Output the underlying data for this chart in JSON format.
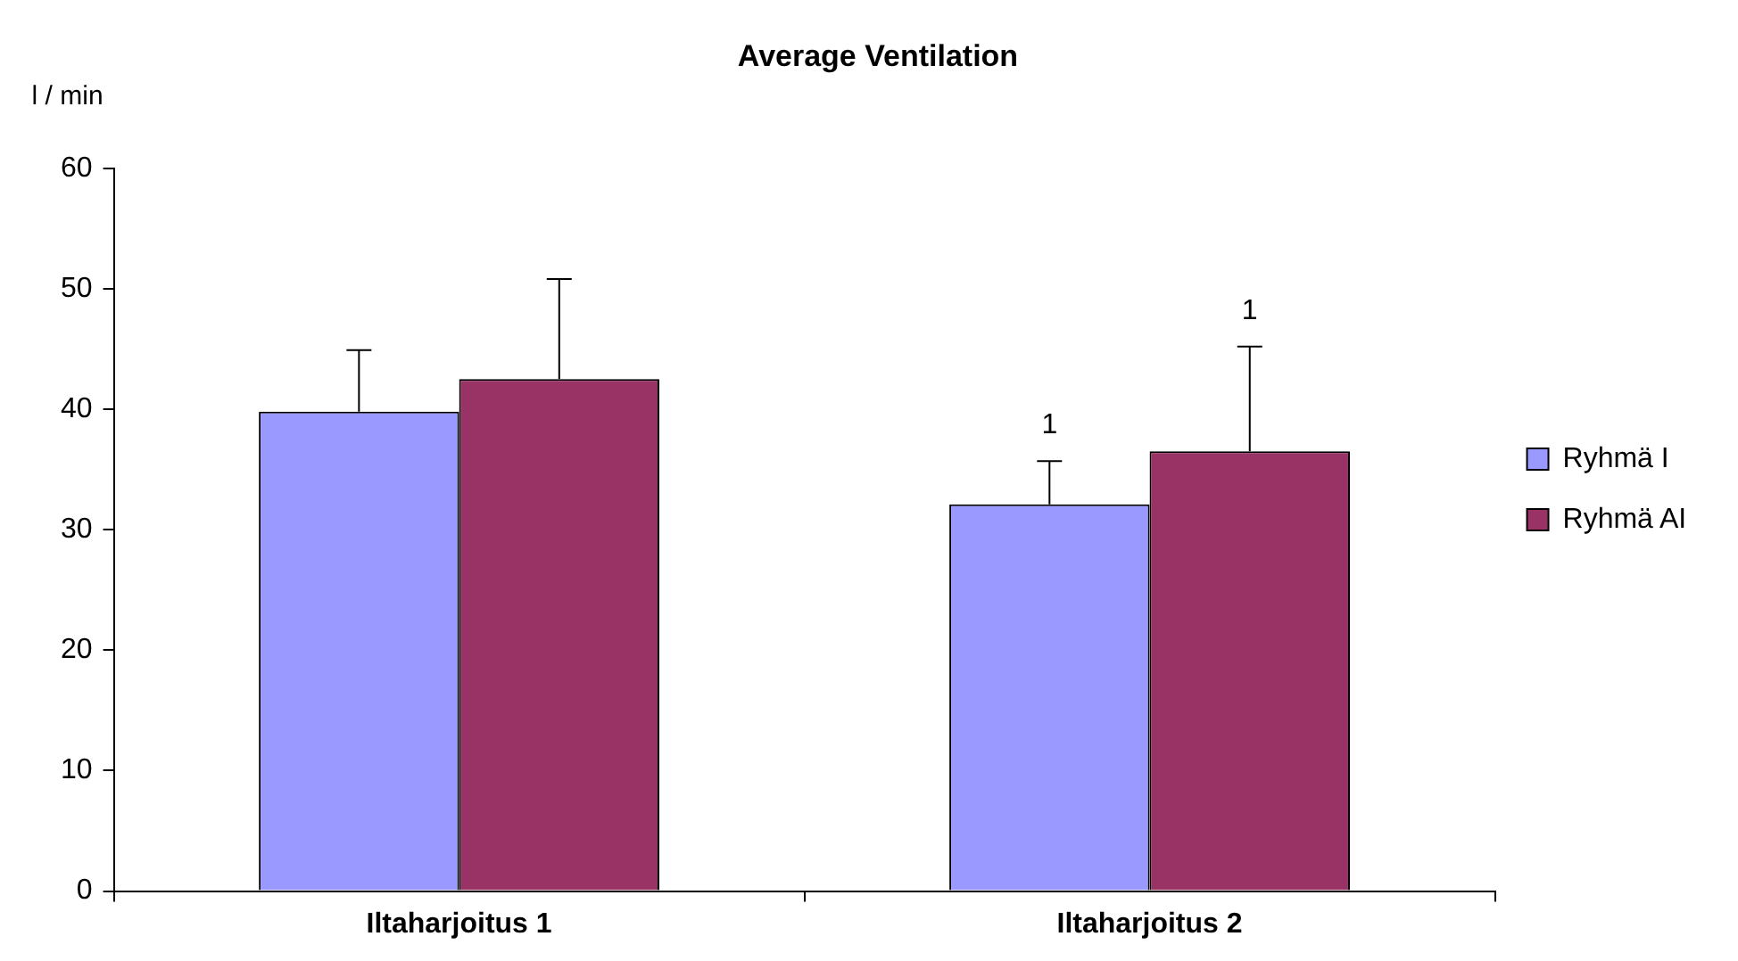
{
  "chart_data": {
    "type": "bar",
    "title": "Average Ventilation",
    "ylabel": "l / min",
    "categories": [
      "Iltaharjoitus 1",
      "Iltaharjoitus 2"
    ],
    "series": [
      {
        "name": "Ryhmä I",
        "color": "#9999ff",
        "values": [
          39.8,
          32.1
        ],
        "errors": [
          [
            39.8,
            44.9
          ],
          [
            32.1,
            35.7
          ]
        ]
      },
      {
        "name": "Ryhmä AI",
        "color": "#993366",
        "values": [
          42.5,
          36.5
        ],
        "errors": [
          [
            42.5,
            50.8
          ],
          [
            36.5,
            45.2
          ]
        ]
      }
    ],
    "ylim": [
      0,
      60
    ],
    "yticks": [
      0,
      10,
      20,
      30,
      40,
      50,
      60
    ],
    "grid": false,
    "legend": "right",
    "annotations": [
      "1",
      "1"
    ]
  }
}
